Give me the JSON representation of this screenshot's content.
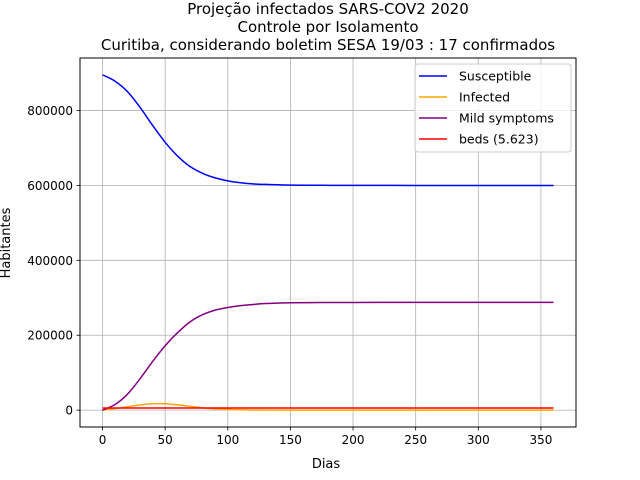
{
  "chart_data": {
    "type": "line",
    "title": [
      "Projeção infectados SARS-COV2 2020",
      "Controle por Isolamento",
      "Curitiba, considerando boletim SESA 19/03 : 17 confirmados"
    ],
    "xlabel": "Dias",
    "ylabel": "Habitantes",
    "xlim": [
      -18,
      378
    ],
    "ylim": [
      -45000,
      940000
    ],
    "xticks": [
      0,
      50,
      100,
      150,
      200,
      250,
      300,
      350
    ],
    "yticks": [
      0,
      200000,
      400000,
      600000,
      800000
    ],
    "grid": true,
    "legend_position": "top-right",
    "series": [
      {
        "name": "Susceptible",
        "color": "#0000ff",
        "x": [
          0,
          10,
          20,
          30,
          40,
          50,
          60,
          70,
          80,
          90,
          100,
          110,
          120,
          130,
          140,
          150,
          175,
          200,
          250,
          300,
          360
        ],
        "y": [
          895000,
          878000,
          850000,
          808000,
          760000,
          715000,
          678000,
          650000,
          632000,
          620000,
          612000,
          607000,
          604000,
          602500,
          601500,
          600800,
          600200,
          600000,
          599800,
          599700,
          599700
        ]
      },
      {
        "name": "Infected",
        "color": "#ffa500",
        "x": [
          0,
          10,
          20,
          30,
          40,
          50,
          60,
          70,
          80,
          90,
          100,
          110,
          120,
          130,
          150,
          200,
          250,
          300,
          360
        ],
        "y": [
          0,
          4000,
          9000,
          14000,
          17000,
          17000,
          14000,
          10000,
          6000,
          3500,
          2000,
          1000,
          500,
          250,
          100,
          0,
          0,
          0,
          0
        ]
      },
      {
        "name": "Mild symptoms",
        "color": "#800080",
        "x": [
          0,
          10,
          20,
          30,
          40,
          50,
          60,
          70,
          80,
          90,
          100,
          110,
          120,
          130,
          140,
          150,
          175,
          200,
          250,
          300,
          360
        ],
        "y": [
          0,
          15000,
          43000,
          84000,
          130000,
          172000,
          207000,
          236000,
          255000,
          267000,
          274000,
          279000,
          282000,
          284500,
          285800,
          286600,
          287300,
          287500,
          287600,
          287600,
          287600
        ]
      },
      {
        "name": "beds (5.623)",
        "color": "#ff0000",
        "x": [
          0,
          360
        ],
        "y": [
          5623,
          5623
        ]
      }
    ]
  }
}
